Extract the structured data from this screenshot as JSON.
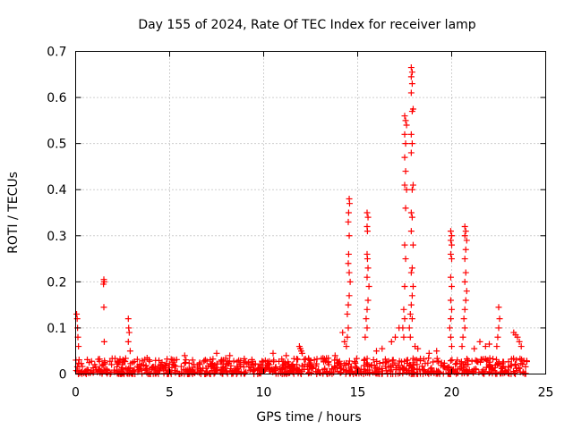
{
  "chart_data": {
    "type": "scatter",
    "title": "Day 155 of 2024, Rate Of TEC Index for receiver lamp",
    "xlabel": "GPS time / hours",
    "ylabel": "ROTI / TECUs",
    "xlim": [
      0,
      25
    ],
    "ylim": [
      0,
      0.7
    ],
    "xticks": [
      0,
      5,
      10,
      15,
      20,
      25
    ],
    "yticks": [
      0,
      0.1,
      0.2,
      0.3,
      0.4,
      0.5,
      0.6,
      0.7
    ],
    "grid": true,
    "marker": "+",
    "series_color": "#ff0000",
    "background_band": {
      "x_range": [
        0,
        24
      ],
      "typical_max": 0.03
    },
    "points": [
      [
        0.05,
        0.13
      ],
      [
        0.08,
        0.12
      ],
      [
        0.1,
        0.1
      ],
      [
        0.12,
        0.08
      ],
      [
        0.15,
        0.06
      ],
      [
        1.5,
        0.205
      ],
      [
        1.52,
        0.2
      ],
      [
        1.48,
        0.195
      ],
      [
        1.5,
        0.145
      ],
      [
        1.52,
        0.07
      ],
      [
        2.8,
        0.12
      ],
      [
        2.82,
        0.1
      ],
      [
        2.85,
        0.09
      ],
      [
        2.8,
        0.07
      ],
      [
        2.9,
        0.05
      ],
      [
        11.9,
        0.06
      ],
      [
        11.95,
        0.055
      ],
      [
        12.0,
        0.05
      ],
      [
        12.05,
        0.045
      ],
      [
        14.2,
        0.09
      ],
      [
        14.3,
        0.07
      ],
      [
        14.4,
        0.06
      ],
      [
        14.55,
        0.38
      ],
      [
        14.57,
        0.37
      ],
      [
        14.52,
        0.35
      ],
      [
        14.5,
        0.33
      ],
      [
        14.55,
        0.3
      ],
      [
        14.52,
        0.26
      ],
      [
        14.5,
        0.24
      ],
      [
        14.55,
        0.22
      ],
      [
        14.6,
        0.2
      ],
      [
        14.55,
        0.17
      ],
      [
        14.5,
        0.15
      ],
      [
        14.45,
        0.13
      ],
      [
        14.5,
        0.1
      ],
      [
        14.45,
        0.08
      ],
      [
        15.5,
        0.35
      ],
      [
        15.55,
        0.34
      ],
      [
        15.5,
        0.32
      ],
      [
        15.52,
        0.31
      ],
      [
        15.5,
        0.26
      ],
      [
        15.52,
        0.25
      ],
      [
        15.55,
        0.23
      ],
      [
        15.5,
        0.21
      ],
      [
        15.6,
        0.19
      ],
      [
        15.55,
        0.16
      ],
      [
        15.5,
        0.14
      ],
      [
        15.45,
        0.12
      ],
      [
        15.5,
        0.1
      ],
      [
        15.4,
        0.08
      ],
      [
        16.8,
        0.07
      ],
      [
        17.0,
        0.08
      ],
      [
        17.2,
        0.1
      ],
      [
        17.5,
        0.56
      ],
      [
        17.55,
        0.55
      ],
      [
        17.6,
        0.54
      ],
      [
        17.5,
        0.52
      ],
      [
        17.55,
        0.5
      ],
      [
        17.5,
        0.47
      ],
      [
        17.55,
        0.44
      ],
      [
        17.5,
        0.41
      ],
      [
        17.6,
        0.4
      ],
      [
        17.55,
        0.36
      ],
      [
        17.5,
        0.28
      ],
      [
        17.55,
        0.25
      ],
      [
        17.5,
        0.19
      ],
      [
        17.45,
        0.14
      ],
      [
        17.5,
        0.12
      ],
      [
        17.4,
        0.1
      ],
      [
        17.45,
        0.08
      ],
      [
        17.85,
        0.665
      ],
      [
        17.9,
        0.655
      ],
      [
        17.85,
        0.645
      ],
      [
        17.9,
        0.63
      ],
      [
        17.85,
        0.61
      ],
      [
        17.95,
        0.575
      ],
      [
        17.9,
        0.57
      ],
      [
        17.85,
        0.52
      ],
      [
        17.9,
        0.5
      ],
      [
        17.85,
        0.48
      ],
      [
        17.95,
        0.41
      ],
      [
        17.9,
        0.4
      ],
      [
        17.85,
        0.35
      ],
      [
        17.9,
        0.34
      ],
      [
        17.85,
        0.31
      ],
      [
        17.95,
        0.28
      ],
      [
        17.9,
        0.23
      ],
      [
        17.85,
        0.22
      ],
      [
        17.95,
        0.19
      ],
      [
        17.9,
        0.17
      ],
      [
        17.85,
        0.15
      ],
      [
        17.8,
        0.13
      ],
      [
        17.9,
        0.12
      ],
      [
        17.75,
        0.1
      ],
      [
        17.8,
        0.08
      ],
      [
        18.05,
        0.06
      ],
      [
        18.2,
        0.055
      ],
      [
        19.95,
        0.31
      ],
      [
        20.0,
        0.3
      ],
      [
        19.95,
        0.29
      ],
      [
        20.0,
        0.28
      ],
      [
        19.95,
        0.26
      ],
      [
        20.0,
        0.25
      ],
      [
        19.95,
        0.21
      ],
      [
        20.0,
        0.19
      ],
      [
        19.95,
        0.16
      ],
      [
        20.0,
        0.14
      ],
      [
        19.95,
        0.12
      ],
      [
        19.9,
        0.1
      ],
      [
        19.95,
        0.08
      ],
      [
        20.0,
        0.06
      ],
      [
        20.7,
        0.32
      ],
      [
        20.75,
        0.31
      ],
      [
        20.7,
        0.3
      ],
      [
        20.8,
        0.29
      ],
      [
        20.75,
        0.27
      ],
      [
        20.7,
        0.25
      ],
      [
        20.75,
        0.22
      ],
      [
        20.7,
        0.2
      ],
      [
        20.8,
        0.18
      ],
      [
        20.75,
        0.16
      ],
      [
        20.7,
        0.14
      ],
      [
        20.65,
        0.12
      ],
      [
        20.7,
        0.1
      ],
      [
        20.6,
        0.08
      ],
      [
        20.55,
        0.06
      ],
      [
        22.5,
        0.145
      ],
      [
        22.55,
        0.12
      ],
      [
        22.5,
        0.1
      ],
      [
        22.45,
        0.08
      ],
      [
        22.4,
        0.06
      ],
      [
        23.3,
        0.09
      ],
      [
        23.4,
        0.085
      ],
      [
        23.5,
        0.08
      ],
      [
        23.6,
        0.07
      ],
      [
        23.7,
        0.06
      ],
      [
        21.5,
        0.07
      ],
      [
        21.8,
        0.06
      ],
      [
        22.0,
        0.065
      ],
      [
        21.2,
        0.055
      ],
      [
        19.2,
        0.05
      ],
      [
        18.8,
        0.045
      ],
      [
        16.3,
        0.055
      ],
      [
        16.0,
        0.05
      ],
      [
        13.8,
        0.04
      ],
      [
        7.5,
        0.045
      ],
      [
        8.2,
        0.04
      ],
      [
        10.5,
        0.045
      ],
      [
        11.2,
        0.04
      ],
      [
        5.8,
        0.04
      ],
      [
        3.8,
        0.035
      ]
    ]
  }
}
